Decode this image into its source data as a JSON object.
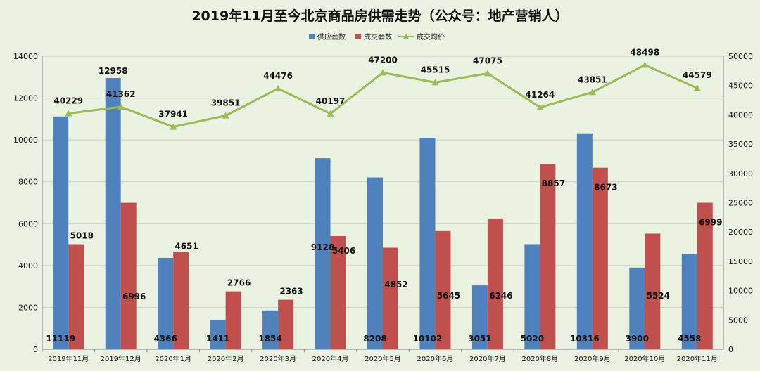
{
  "chart_data": {
    "type": "bar",
    "title": "2019年11月至今北京商品房供需走势（公众号：地产营销人）",
    "categories": [
      "2019年11月",
      "2019年12月",
      "2020年1月",
      "2020年2月",
      "2020年3月",
      "2020年4月",
      "2020年5月",
      "2020年6月",
      "2020年7月",
      "2020年8月",
      "2020年9月",
      "2020年10月",
      "2020年11月"
    ],
    "series": [
      {
        "name": "供应套数",
        "type": "bar",
        "axis": "left",
        "color": "#4f81bd",
        "values": [
          11119,
          12958,
          4366,
          1411,
          1854,
          9128,
          8208,
          10102,
          3051,
          5020,
          10316,
          3900,
          4558
        ]
      },
      {
        "name": "成交套数",
        "type": "bar",
        "axis": "left",
        "color": "#c0504d",
        "values": [
          5018,
          6996,
          4651,
          2766,
          2363,
          5406,
          4852,
          5645,
          6246,
          8857,
          8673,
          5524,
          6999
        ]
      },
      {
        "name": "成交均价",
        "type": "line",
        "axis": "right",
        "color": "#9bbb59",
        "values": [
          40229,
          41362,
          37941,
          39851,
          44476,
          40197,
          47200,
          45515,
          47075,
          41264,
          43851,
          48498,
          44579
        ]
      }
    ],
    "y_left": {
      "min": 0,
      "max": 14000,
      "step": 2000,
      "ticks": [
        "0",
        "2000",
        "4000",
        "6000",
        "8000",
        "10000",
        "12000",
        "14000"
      ]
    },
    "y_right": {
      "min": 0,
      "max": 50000,
      "step": 5000,
      "ticks": [
        "0",
        "5000",
        "10000",
        "15000",
        "20000",
        "25000",
        "30000",
        "35000",
        "40000",
        "45000",
        "50000"
      ]
    },
    "legend_position": "top-center",
    "grid": "horizontal",
    "background": "#eaf2e2"
  }
}
